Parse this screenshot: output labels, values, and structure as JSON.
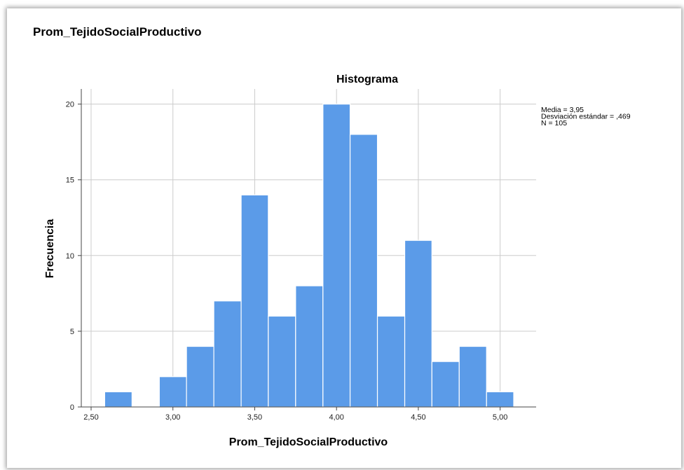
{
  "page": {
    "variable_title": "Prom_TejidoSocialProductivo"
  },
  "chart_data": {
    "type": "bar",
    "title": "Histograma",
    "xlabel": "Prom_TejidoSocialProductivo",
    "ylabel": "Frecuencia",
    "x_ticks": [
      "2,50",
      "3,00",
      "3,50",
      "4,00",
      "4,50",
      "5,00"
    ],
    "x_tick_values": [
      2.5,
      3.0,
      3.5,
      4.0,
      4.5,
      5.0
    ],
    "y_ticks": [
      "0",
      "5",
      "10",
      "15",
      "20"
    ],
    "y_tick_values": [
      0,
      5,
      10,
      15,
      20
    ],
    "xlim": [
      2.44,
      5.22
    ],
    "ylim": [
      0,
      21
    ],
    "bins": [
      {
        "x0": 2.583,
        "x1": 2.75,
        "count": 1
      },
      {
        "x0": 2.917,
        "x1": 3.083,
        "count": 2
      },
      {
        "x0": 3.083,
        "x1": 3.25,
        "count": 4
      },
      {
        "x0": 3.25,
        "x1": 3.417,
        "count": 7
      },
      {
        "x0": 3.417,
        "x1": 3.583,
        "count": 14
      },
      {
        "x0": 3.583,
        "x1": 3.75,
        "count": 6
      },
      {
        "x0": 3.75,
        "x1": 3.917,
        "count": 8
      },
      {
        "x0": 3.917,
        "x1": 4.083,
        "count": 20
      },
      {
        "x0": 4.083,
        "x1": 4.25,
        "count": 18
      },
      {
        "x0": 4.25,
        "x1": 4.417,
        "count": 6
      },
      {
        "x0": 4.417,
        "x1": 4.583,
        "count": 11
      },
      {
        "x0": 4.583,
        "x1": 4.75,
        "count": 3
      },
      {
        "x0": 4.75,
        "x1": 4.917,
        "count": 4
      },
      {
        "x0": 4.917,
        "x1": 5.083,
        "count": 1
      }
    ],
    "stats": [
      "Media = 3,95",
      "Desviación estándar = ,469",
      "N = 105"
    ],
    "bar_color": "#5b9be8",
    "grid": true,
    "legend_position": "top-right"
  }
}
